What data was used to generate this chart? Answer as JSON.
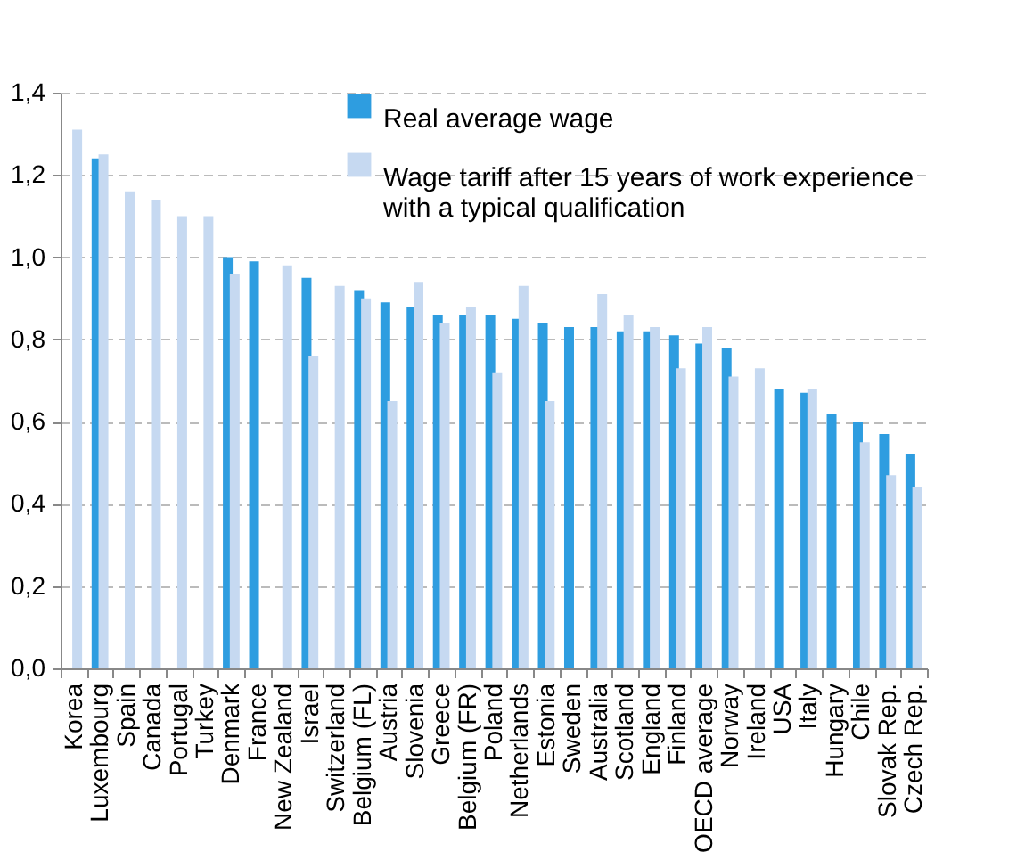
{
  "chart_data": {
    "type": "bar",
    "categories": [
      "Korea",
      "Luxembourg",
      "Spain",
      "Canada",
      "Portugal",
      "Turkey",
      "Denmark",
      "France",
      "New Zealand",
      "Israel",
      "Switzerland",
      "Belgium (FL)",
      "Austria",
      "Slovenia",
      "Greece",
      "Belgium (FR)",
      "Poland",
      "Netherlands",
      "Estonia",
      "Sweden",
      "Australia",
      "Scotland",
      "England",
      "Finland",
      "OECD average",
      "Norway",
      "Ireland",
      "USA",
      "Italy",
      "Hungary",
      "Chile",
      "Slovak Rep.",
      "Czech Rep."
    ],
    "series": [
      {
        "name": "Real average wage",
        "color": "#2e9de0",
        "values": [
          null,
          1.24,
          null,
          null,
          null,
          null,
          1.0,
          0.99,
          null,
          0.95,
          null,
          0.92,
          0.89,
          0.88,
          0.86,
          0.86,
          0.86,
          0.85,
          0.84,
          0.83,
          0.83,
          0.82,
          0.82,
          0.81,
          0.79,
          0.78,
          null,
          0.68,
          0.67,
          0.62,
          0.6,
          0.57,
          0.52
        ]
      },
      {
        "name": "Wage tariff after 15 years of work experience with a typical qualification",
        "color": "#c6d9f1",
        "values": [
          1.31,
          1.25,
          1.16,
          1.14,
          1.1,
          1.1,
          0.96,
          null,
          0.98,
          0.76,
          0.93,
          0.9,
          0.65,
          0.94,
          0.84,
          0.88,
          0.72,
          0.93,
          0.65,
          null,
          0.91,
          0.86,
          0.83,
          0.73,
          0.83,
          0.71,
          0.73,
          null,
          0.68,
          null,
          0.55,
          0.47,
          0.44
        ]
      }
    ],
    "ylim": [
      0,
      1.4
    ],
    "yticks": [
      {
        "value": 0,
        "label": "0,0"
      },
      {
        "value": 0.2,
        "label": "0,2"
      },
      {
        "value": 0.4,
        "label": "0,4"
      },
      {
        "value": 0.6,
        "label": "0,6"
      },
      {
        "value": 0.8,
        "label": "0,8"
      },
      {
        "value": 1.0,
        "label": "1,0"
      },
      {
        "value": 1.2,
        "label": "1,2"
      },
      {
        "value": 1.4,
        "label": "1,4"
      }
    ],
    "grid": "y",
    "legend": "top"
  }
}
